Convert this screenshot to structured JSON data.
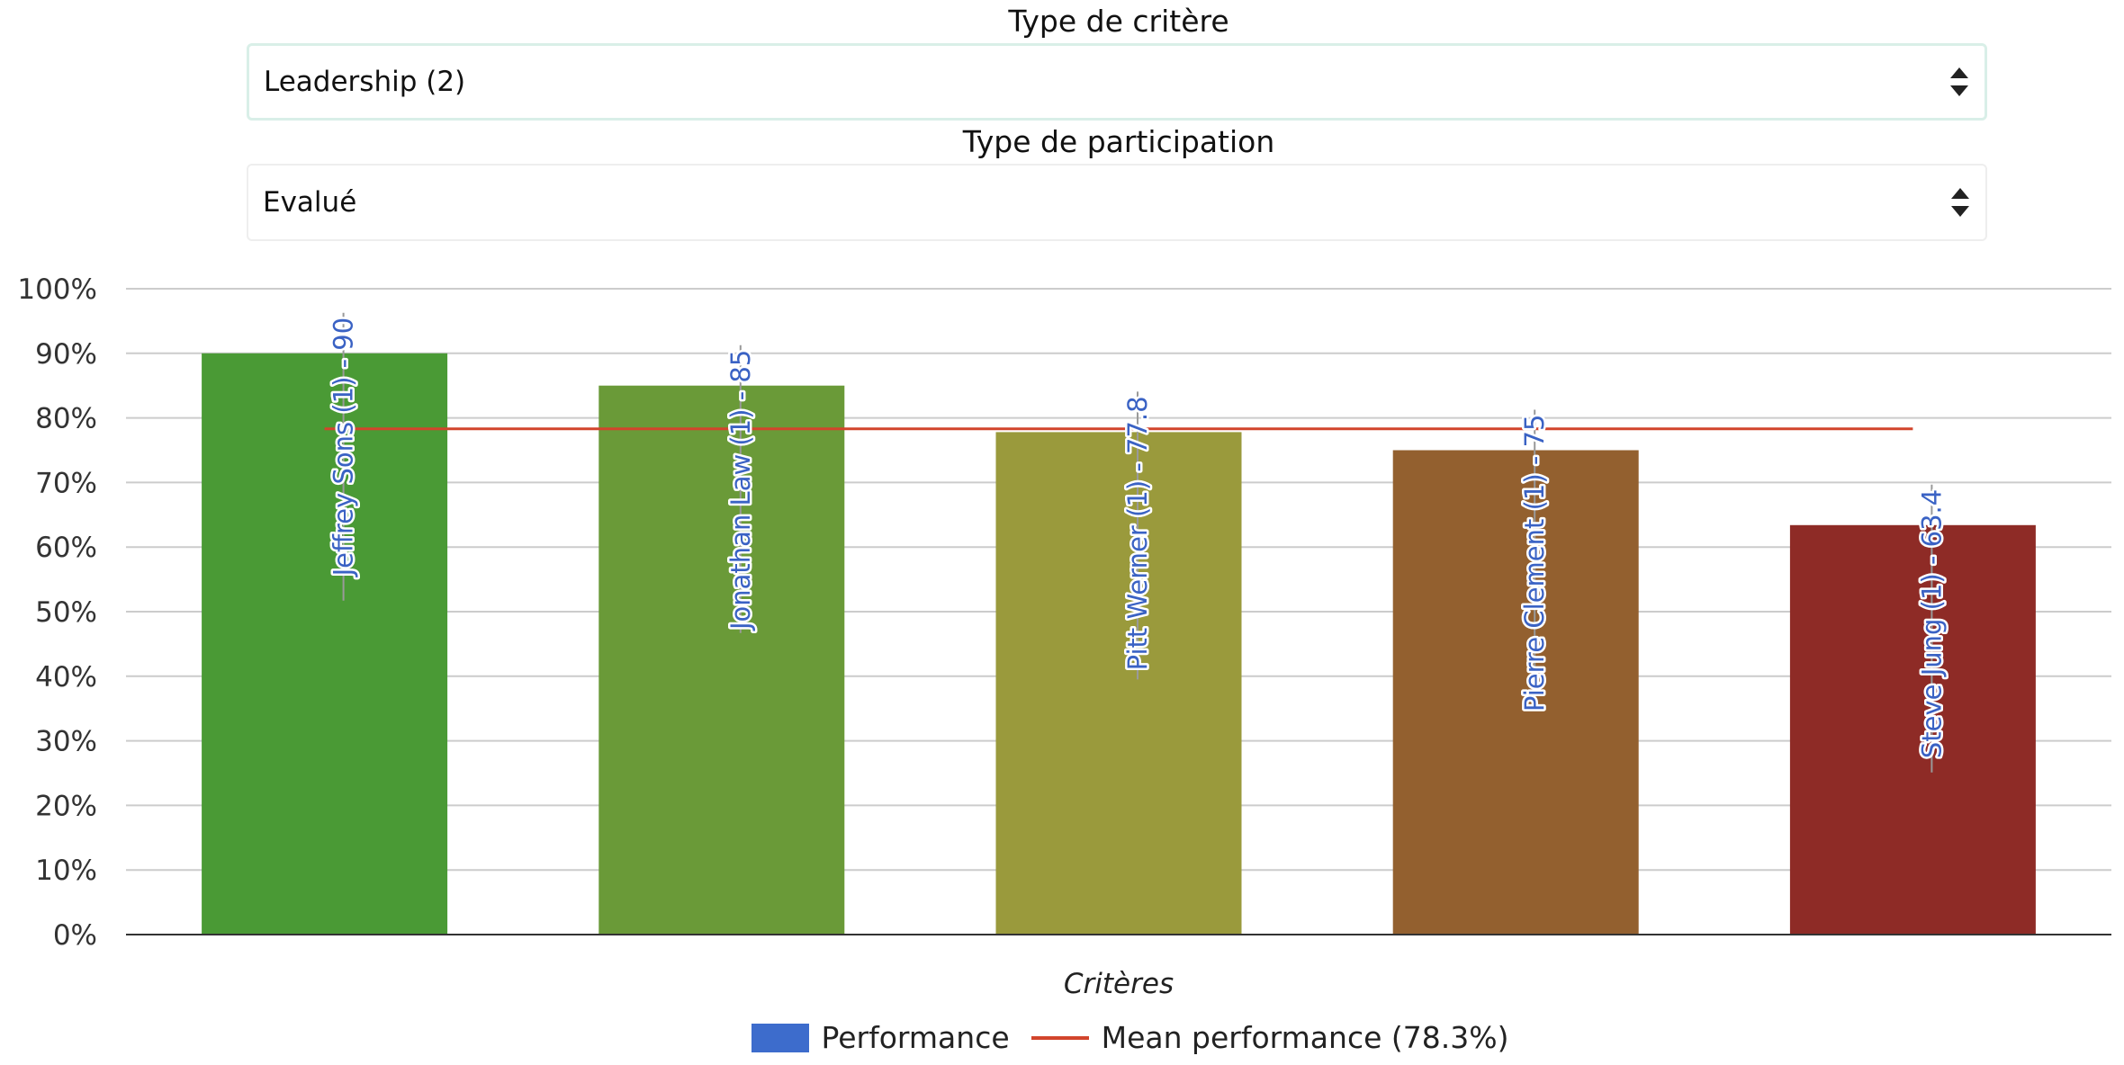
{
  "filters": {
    "critere": {
      "label": "Type de critère",
      "value": "Leadership (2)"
    },
    "participation": {
      "label": "Type de participation",
      "value": "Evalué"
    }
  },
  "colors": {
    "performance_legend": "#3d6ccc",
    "mean_line": "#d2452c",
    "label_text": "#3a62c4",
    "bars": [
      "#4a9a35",
      "#6a9a38",
      "#9a9a3c",
      "#93602f",
      "#8e2b26"
    ]
  },
  "chart_data": {
    "type": "bar",
    "categories": [
      "Jeffrey Sons (1) - 90",
      "Jonathan Law (1) - 85",
      "Pitt Werner (1) - 77.8",
      "Pierre Clement (1) - 75",
      "Steve Jung (1) - 63.4"
    ],
    "series": [
      {
        "name": "Performance",
        "values": [
          90,
          85,
          77.8,
          75,
          63.4
        ]
      }
    ],
    "mean": {
      "name": "Mean performance (78.3%)",
      "value": 78.3
    },
    "xlabel": "Critères",
    "ylabel": "",
    "ylim": [
      0,
      100
    ],
    "yticks": [
      "0%",
      "10%",
      "20%",
      "30%",
      "40%",
      "50%",
      "60%",
      "70%",
      "80%",
      "90%",
      "100%"
    ],
    "grid": true,
    "legend_position": "bottom"
  }
}
